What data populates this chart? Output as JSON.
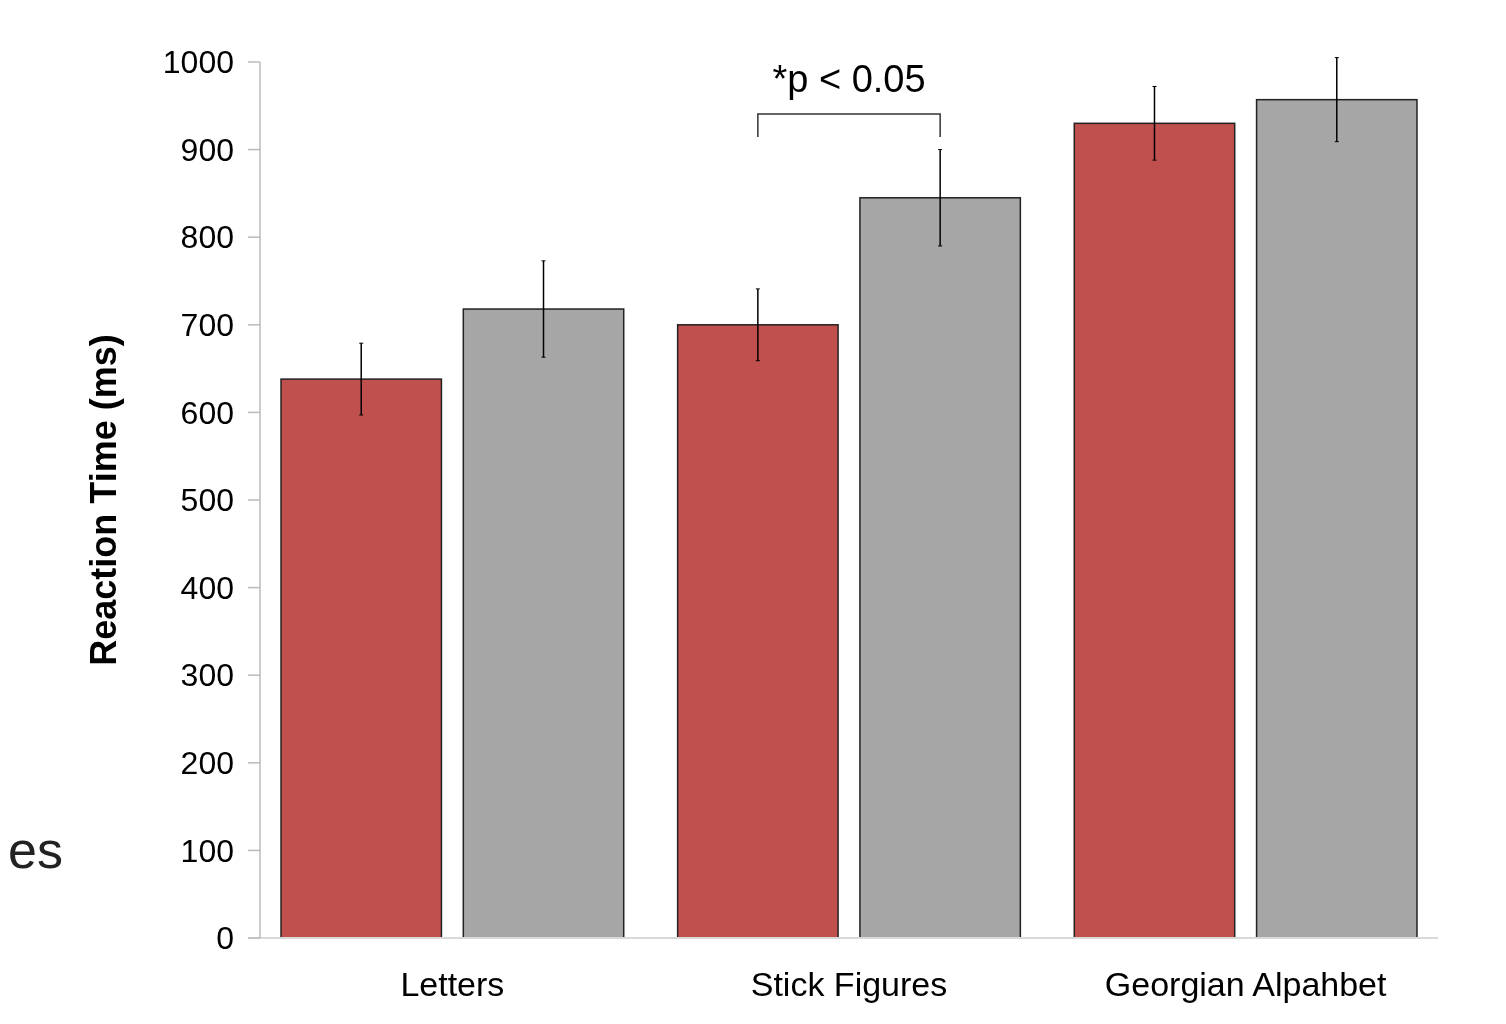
{
  "chart_data": {
    "type": "bar",
    "ylabel": "Reaction Time (ms)",
    "categories": [
      "Letters",
      "Stick Figures",
      "Georgian Alpahbet"
    ],
    "series": [
      {
        "color": "#c0504d",
        "values": [
          638,
          700,
          930
        ],
        "errors": [
          41,
          41,
          42
        ]
      },
      {
        "color": "#a6a6a6",
        "values": [
          718,
          845,
          957
        ],
        "errors": [
          55,
          55,
          48
        ]
      }
    ],
    "ylim": [
      0,
      1000
    ],
    "yticks": [
      0,
      100,
      200,
      300,
      400,
      500,
      600,
      700,
      800,
      900,
      1000
    ],
    "grid": false,
    "annotations": [
      "*p < 0.05",
      "es"
    ]
  }
}
